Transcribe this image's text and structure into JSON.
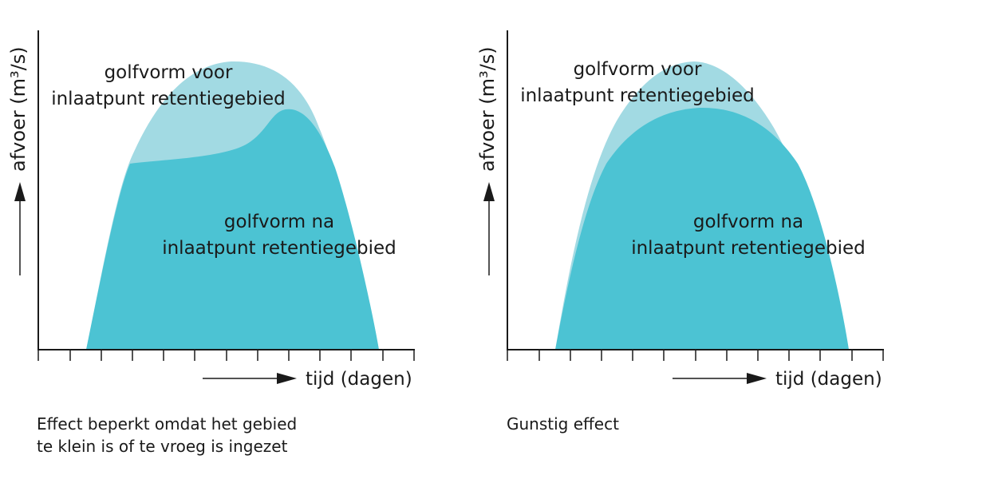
{
  "colors": {
    "curve_before": "#a2dae3",
    "curve_after": "#4cc3d3",
    "axis": "#1a1a1a",
    "header_fragment": "#1f5fbf"
  },
  "diagrams": [
    {
      "id": "left",
      "y_label": "afvoer (m³/s)",
      "x_label": "tijd (dagen)",
      "before_label": [
        "golfvorm voor",
        "inlaatpunt retentiegebied"
      ],
      "after_label": [
        "golfvorm na",
        "inlaatpunt retentiegebied"
      ],
      "caption": [
        "Effect beperkt omdat het gebied",
        "te klein is of te vroeg is ingezet"
      ]
    },
    {
      "id": "right",
      "y_label": "afvoer (m³/s)",
      "x_label": "tijd (dagen)",
      "before_label": [
        "golfvorm voor",
        "inlaatpunt retentiegebied"
      ],
      "after_label": [
        "golfvorm na",
        "inlaatpunt retentiegebied"
      ],
      "caption": [
        "Gunstig effect"
      ]
    }
  ]
}
